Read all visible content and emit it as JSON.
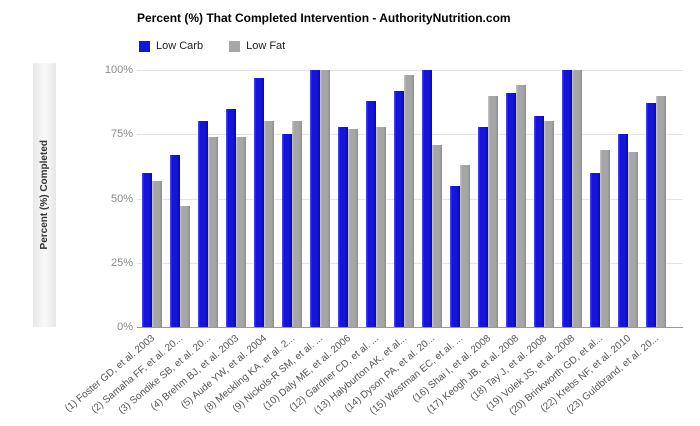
{
  "chart_data": {
    "type": "bar",
    "title": "Percent (%) That Completed Intervention - AuthorityNutrition.com",
    "ylabel": "Percent (%) Completed",
    "xlabel": "",
    "ylim": [
      0,
      100
    ],
    "grid": true,
    "legend_position": "top-left",
    "yticks": [
      {
        "value": 100,
        "label": "100%"
      },
      {
        "value": 75,
        "label": "75%"
      },
      {
        "value": 50,
        "label": "50%"
      },
      {
        "value": 25,
        "label": "25%"
      },
      {
        "value": 0,
        "label": "0%"
      }
    ],
    "categories": [
      "(1) Foster GD, et al. 2003",
      "(2) Samaha FF, et al. 20...",
      "(3) Sondike SB, et al. 20...",
      "(4) Brehm BJ, et al. 2003",
      "(5) Aude YW, et al. 2004",
      "(8) Meckling KA, et al. 2...",
      "(9) Nickols-R SM, et al. ...",
      "(10) Daly ME, et al. 2006",
      "(12) Gardner CD, et al. ...",
      "(13) Halyburton AK, et al...",
      "(14) Dyson PA, et al. 20...",
      "(15) Westman EC, et al. ...",
      "(16) Shai I, et al. 2008",
      "(17) Keogh JB, et al. 2008",
      "(18) Tay J, et al. 2008",
      "(19) Volek JS, et al. 2008",
      "(20) Brinkworth GD, et al...",
      "(22) Krebs NF, et al. 2010",
      "(23) Guldbrand, et al. 20..."
    ],
    "series": [
      {
        "name": "Low Carb",
        "color": "#1414dc",
        "values": [
          60,
          67,
          80,
          85,
          97,
          75,
          100,
          78,
          88,
          92,
          100,
          55,
          78,
          91,
          82,
          100,
          60,
          75,
          87
        ]
      },
      {
        "name": "Low Fat",
        "color": "#a6a6a6",
        "values": [
          57,
          47,
          74,
          74,
          80,
          80,
          100,
          77,
          78,
          98,
          71,
          63,
          90,
          94,
          80,
          100,
          69,
          68,
          90
        ]
      }
    ]
  }
}
